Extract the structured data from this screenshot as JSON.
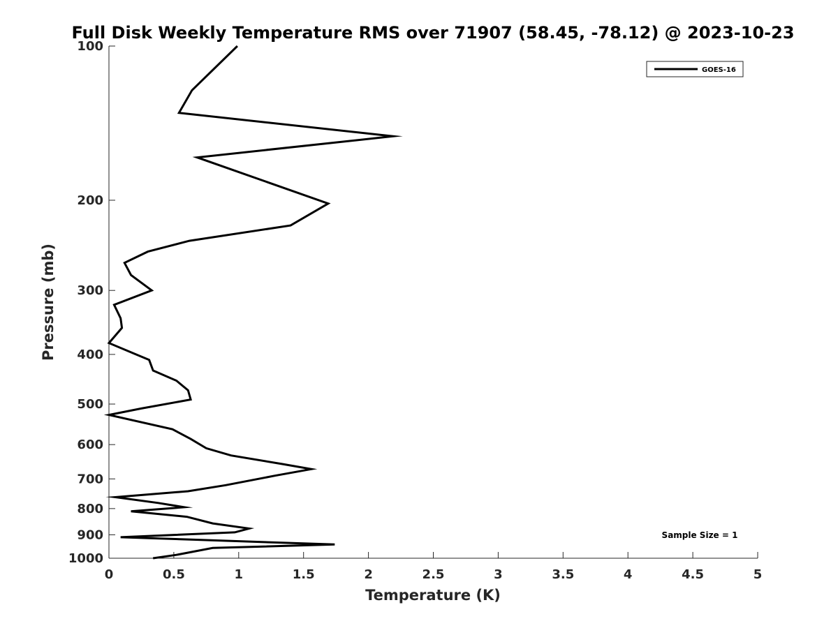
{
  "chart_data": {
    "type": "line",
    "title": "Full Disk Weekly Temperature RMS over 71907 (58.45, -78.12) @ 2023-10-23",
    "xlabel": "Temperature (K)",
    "ylabel": "Pressure (mb)",
    "xlim": [
      0,
      5
    ],
    "ylim": [
      100,
      1000
    ],
    "yscale": "log",
    "yreversed": true,
    "xticks": [
      0,
      0.5,
      1,
      1.5,
      2,
      2.5,
      3,
      3.5,
      4,
      4.5,
      5
    ],
    "xtick_labels": [
      "0",
      "0.5",
      "1",
      "1.5",
      "2",
      "2.5",
      "3",
      "3.5",
      "4",
      "4.5",
      "5"
    ],
    "yticks": [
      100,
      200,
      300,
      400,
      500,
      600,
      700,
      800,
      900,
      1000
    ],
    "ytick_labels": [
      "100",
      "200",
      "300",
      "400",
      "500",
      "600",
      "700",
      "800",
      "900",
      "1000"
    ],
    "grid": false,
    "legend_position": "top-right",
    "series": [
      {
        "name": "GOES-16",
        "color": "#000000",
        "x": [
          0.99,
          0.64,
          0.54,
          2.19,
          0.68,
          1.69,
          1.4,
          0.62,
          0.3,
          0.12,
          0.17,
          0.33,
          0.04,
          0.09,
          0.1,
          0.0,
          0.31,
          0.34,
          0.52,
          0.61,
          0.63,
          0.25,
          0.0,
          0.49,
          0.63,
          0.75,
          0.94,
          1.34,
          1.56,
          1.28,
          0.9,
          0.61,
          0.05,
          0.38,
          0.58,
          0.17,
          0.6,
          0.8,
          1.08,
          0.97,
          0.09,
          0.65,
          1.74,
          0.8,
          0.52,
          0.34
        ],
        "y": [
          100,
          122,
          135,
          150,
          165,
          203,
          224,
          240,
          252,
          265,
          280,
          300,
          320,
          340,
          355,
          380,
          410,
          430,
          450,
          470,
          490,
          510,
          525,
          560,
          585,
          610,
          630,
          655,
          670,
          690,
          720,
          740,
          760,
          780,
          795,
          810,
          830,
          855,
          875,
          890,
          910,
          920,
          940,
          955,
          985,
          1000
        ]
      }
    ],
    "annotations": [
      "Sample Size = 1"
    ]
  }
}
